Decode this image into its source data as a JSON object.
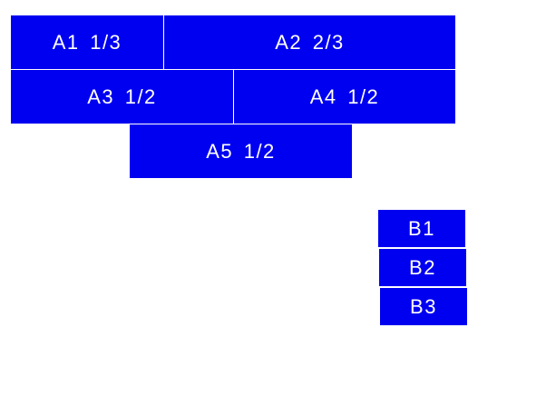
{
  "accent_color": "#0000f0",
  "group_a": [
    {
      "label": "A1  1/3"
    },
    {
      "label": "A2  2/3"
    },
    {
      "label": "A3  1/2"
    },
    {
      "label": "A4  1/2"
    },
    {
      "label": "A5  1/2"
    }
  ],
  "group_b": [
    {
      "label": "B1"
    },
    {
      "label": "B2"
    },
    {
      "label": "B3"
    }
  ]
}
